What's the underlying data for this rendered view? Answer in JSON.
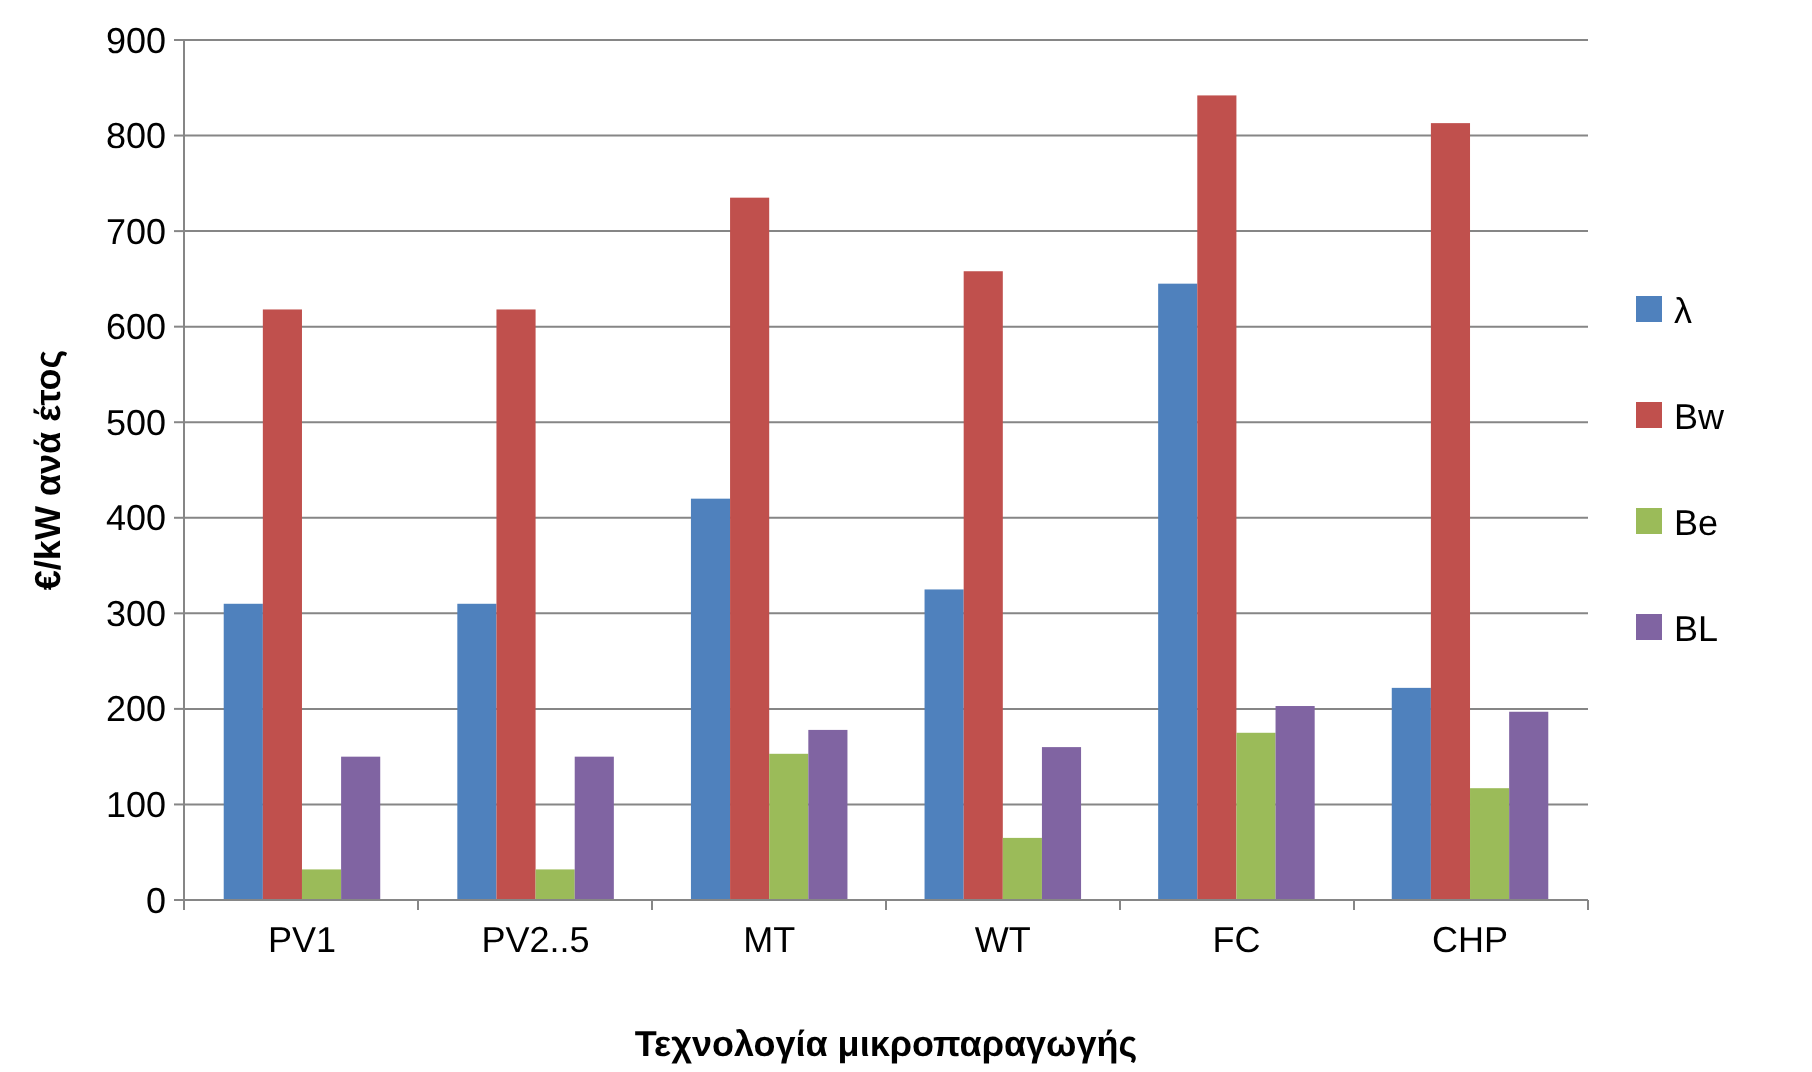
{
  "chart_data": {
    "type": "bar",
    "xlabel": "Τεχνολογία μικροπαραγωγής",
    "ylabel": "€/kW ανά έτος",
    "categories": [
      "PV1",
      "PV2..5",
      "MT",
      "WT",
      "FC",
      "CHP"
    ],
    "series": [
      {
        "name": "λ",
        "color": "#4f81bd",
        "values": [
          310,
          310,
          420,
          325,
          645,
          222
        ]
      },
      {
        "name": "Bw",
        "color": "#c0504d",
        "values": [
          618,
          618,
          735,
          658,
          842,
          813
        ]
      },
      {
        "name": "Be",
        "color": "#9bbb59",
        "values": [
          32,
          32,
          153,
          65,
          175,
          117
        ]
      },
      {
        "name": "BL",
        "color": "#8064a2",
        "values": [
          150,
          150,
          178,
          160,
          203,
          197
        ]
      }
    ],
    "ylim": [
      0,
      900
    ],
    "yticks": [
      0,
      100,
      200,
      300,
      400,
      500,
      600,
      700,
      800,
      900
    ],
    "grid": "y",
    "legend": "right"
  }
}
